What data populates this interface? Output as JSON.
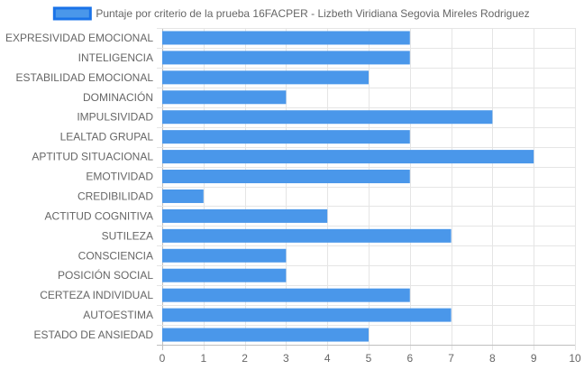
{
  "chart_data": {
    "type": "bar",
    "orientation": "horizontal",
    "title": "",
    "xlabel": "",
    "ylabel": "",
    "categories": [
      "EXPRESIVIDAD EMOCIONAL",
      "INTELIGENCIA",
      "ESTABILIDAD EMOCIONAL",
      "DOMINACIÓN",
      "IMPULSIVIDAD",
      "LEALTAD GRUPAL",
      "APTITUD SITUACIONAL",
      "EMOTIVIDAD",
      "CREDIBILIDAD",
      "ACTITUD COGNITIVA",
      "SUTILEZA",
      "CONSCIENCIA",
      "POSICIÓN SOCIAL",
      "CERTEZA INDIVIDUAL",
      "AUTOESTIMA",
      "ESTADO DE ANSIEDAD"
    ],
    "series": [
      {
        "name": "Puntaje por criterio de la prueba 16FACPER - Lizbeth Viridiana Segovia Mireles Rodriguez",
        "values": [
          6,
          6,
          5,
          3,
          8,
          6,
          9,
          6,
          1,
          4,
          7,
          3,
          3,
          6,
          7,
          5
        ],
        "color": "#4a97ea",
        "border_color": "#1a73e8"
      }
    ],
    "xlim": [
      0,
      10
    ],
    "xticks": [
      "0",
      "1",
      "2",
      "3",
      "4",
      "5",
      "6",
      "7",
      "8",
      "9",
      "10"
    ],
    "grid": true,
    "legend_position": "top"
  }
}
